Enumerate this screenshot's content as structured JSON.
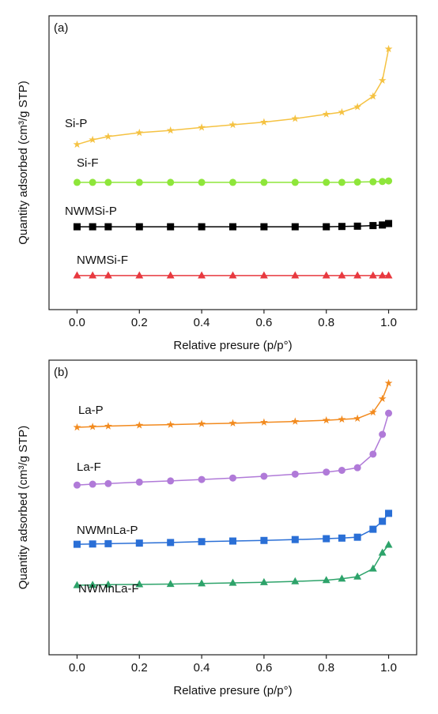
{
  "chart_data": [
    {
      "type": "line",
      "panel_label": "(a)",
      "x_label": "Relative presure (p/p°)",
      "y_label": "Quantity adsorbed (cm³/g STP)",
      "x": [
        0,
        0.05,
        0.1,
        0.2,
        0.3,
        0.4,
        0.5,
        0.6,
        0.7,
        0.8,
        0.85,
        0.9,
        0.95,
        0.98,
        1.0
      ],
      "xlim": [
        -0.09,
        1.09
      ],
      "xticks": [
        {
          "value": 0,
          "label": "0.0"
        },
        0.2,
        0.4,
        0.6,
        0.8,
        {
          "value": 1,
          "label": "1.0"
        }
      ],
      "ylim": [
        0,
        100
      ],
      "series": [
        {
          "name": "Si-P",
          "color": "#f5c242",
          "marker": "star",
          "values": [
            56.2,
            57.8,
            58.9,
            60.2,
            61,
            62,
            62.9,
            63.8,
            65,
            66.5,
            67.2,
            69,
            72.6,
            78,
            88.7
          ]
        },
        {
          "name": "Si-F",
          "color": "#8ee63a",
          "marker": "circle",
          "values": [
            43.3,
            43.3,
            43.3,
            43.3,
            43.3,
            43.3,
            43.3,
            43.3,
            43.3,
            43.3,
            43.3,
            43.4,
            43.5,
            43.6,
            43.8
          ]
        },
        {
          "name": "NWMSi-P",
          "color": "#000000",
          "marker": "square",
          "values": [
            28.2,
            28.2,
            28.2,
            28.2,
            28.2,
            28.2,
            28.2,
            28.2,
            28.2,
            28.2,
            28.3,
            28.4,
            28.6,
            28.8,
            29.3
          ]
        },
        {
          "name": "NWMSi-F",
          "color": "#e8393f",
          "marker": "triangle",
          "values": [
            11.6,
            11.6,
            11.6,
            11.6,
            11.6,
            11.6,
            11.6,
            11.6,
            11.6,
            11.6,
            11.6,
            11.6,
            11.6,
            11.6,
            11.6
          ]
        }
      ]
    },
    {
      "type": "line",
      "panel_label": "(b)",
      "x_label": "Relative presure (p/p°)",
      "y_label": "Quantity adsorbed (cm³/g STP)",
      "x": [
        0,
        0.05,
        0.1,
        0.2,
        0.3,
        0.4,
        0.5,
        0.6,
        0.7,
        0.8,
        0.85,
        0.9,
        0.95,
        0.98,
        1.0
      ],
      "xlim": [
        -0.09,
        1.09
      ],
      "xticks": [
        {
          "value": 0,
          "label": "0.0"
        },
        0.2,
        0.4,
        0.6,
        0.8,
        {
          "value": 1,
          "label": "1.0"
        }
      ],
      "ylim": [
        0,
        100
      ],
      "series": [
        {
          "name": "La-P",
          "color": "#f28a1e",
          "marker": "star",
          "values": [
            77.2,
            77.4,
            77.6,
            77.9,
            78.1,
            78.4,
            78.6,
            78.9,
            79.2,
            79.6,
            79.9,
            80.2,
            82.3,
            86.9,
            92.2
          ]
        },
        {
          "name": "La-F",
          "color": "#b07ad8",
          "marker": "circle",
          "values": [
            57.6,
            57.9,
            58.1,
            58.6,
            59,
            59.5,
            60,
            60.6,
            61.3,
            62,
            62.6,
            63.5,
            68.1,
            74.8,
            82
          ]
        },
        {
          "name": "NWMnLa-P",
          "color": "#2a6fd6",
          "marker": "square",
          "values": [
            37.5,
            37.6,
            37.7,
            37.9,
            38.1,
            38.4,
            38.6,
            38.8,
            39.1,
            39.4,
            39.6,
            39.9,
            42.6,
            45.3,
            48
          ]
        },
        {
          "name": "NWMnLa-F",
          "color": "#2da36a",
          "marker": "triangle",
          "values": [
            23.6,
            23.7,
            23.8,
            23.9,
            24,
            24.2,
            24.4,
            24.6,
            24.9,
            25.3,
            25.8,
            26.5,
            29.2,
            34.6,
            37.3
          ]
        }
      ]
    }
  ]
}
